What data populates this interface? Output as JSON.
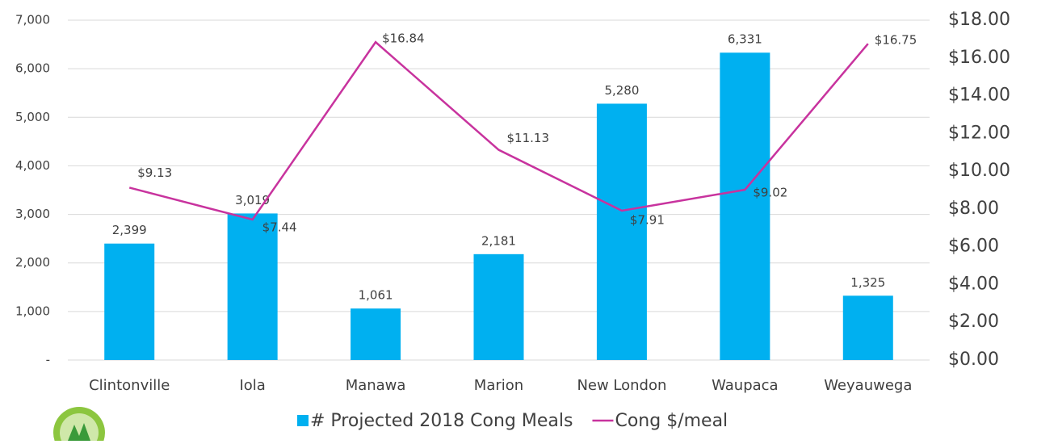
{
  "chart_data": {
    "type": "combo",
    "categories": [
      "Clintonville",
      "Iola",
      "Manawa",
      "Marion",
      "New London",
      "Waupaca",
      "Weyauwega"
    ],
    "series": [
      {
        "name": "# Projected 2018 Cong Meals",
        "type": "bar",
        "color": "#00b0f0",
        "values": [
          2399,
          3019,
          1061,
          2181,
          5280,
          6331,
          1325
        ],
        "value_labels": [
          "2,399",
          "3,019",
          "1,061",
          "2,181",
          "5,280",
          "6,331",
          "1,325"
        ]
      },
      {
        "name": "Cong $/meal",
        "type": "line",
        "axis": "y2",
        "color": "#c8339e",
        "values": [
          9.13,
          7.44,
          16.84,
          11.13,
          7.91,
          9.02,
          16.75
        ],
        "value_labels": [
          "$9.13",
          "$7.44",
          "$16.84",
          "$11.13",
          "$7.91",
          "$9.02",
          "$16.75"
        ]
      }
    ],
    "ylim": [
      0,
      7000
    ],
    "yticks": [
      {
        "value": 0,
        "label": "-"
      },
      {
        "value": 1000,
        "label": "1,000"
      },
      {
        "value": 2000,
        "label": "2,000"
      },
      {
        "value": 3000,
        "label": "3,000"
      },
      {
        "value": 4000,
        "label": "4,000"
      },
      {
        "value": 5000,
        "label": "5,000"
      },
      {
        "value": 6000,
        "label": "6,000"
      },
      {
        "value": 7000,
        "label": "7,000"
      }
    ],
    "y2lim": [
      0,
      18
    ],
    "y2ticks": [
      {
        "value": 0,
        "label": "$0.00"
      },
      {
        "value": 2,
        "label": "$2.00"
      },
      {
        "value": 4,
        "label": "$4.00"
      },
      {
        "value": 6,
        "label": "$6.00"
      },
      {
        "value": 8,
        "label": "$8.00"
      },
      {
        "value": 10,
        "label": "$10.00"
      },
      {
        "value": 12,
        "label": "$12.00"
      },
      {
        "value": 14,
        "label": "$14.00"
      },
      {
        "value": 16,
        "label": "$16.00"
      },
      {
        "value": 18,
        "label": "$18.00"
      }
    ],
    "grid": true,
    "legend": "bottom"
  }
}
